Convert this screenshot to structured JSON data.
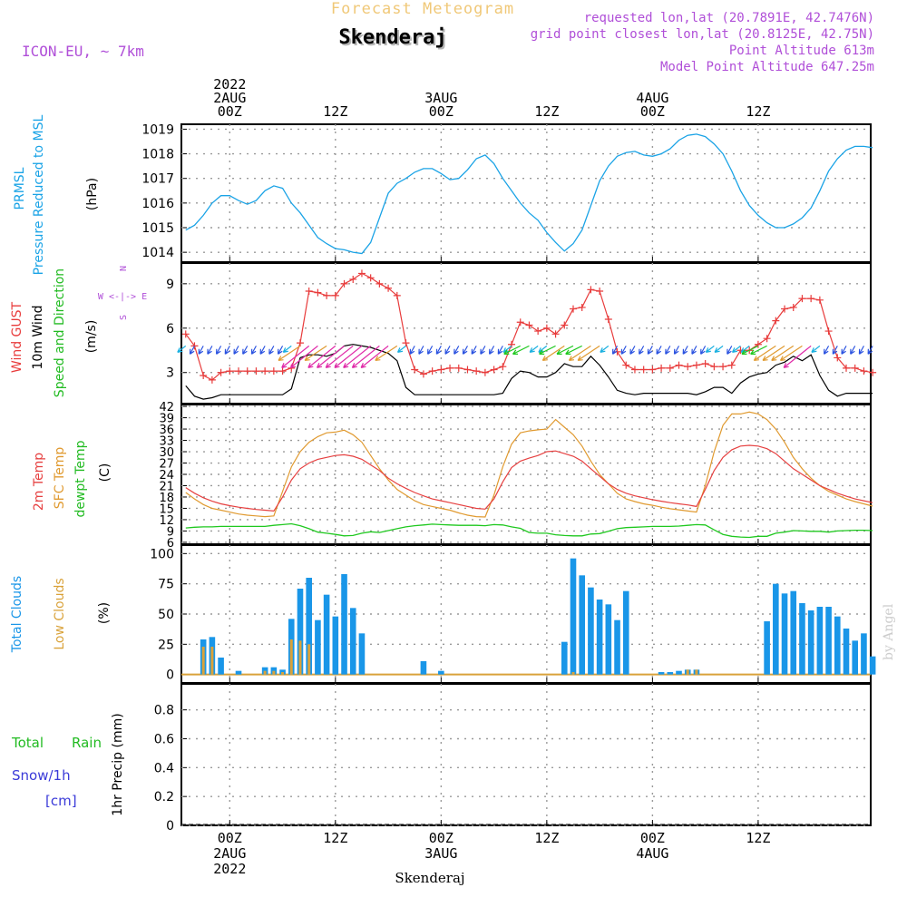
{
  "header": {
    "product": "Forecast Meteogram",
    "station": "Skenderaj",
    "model": "ICON-EU, ~ 7km",
    "requested": "requested lon,lat (20.7891E, 42.7476N)",
    "gridpoint": "grid point closest lon,lat (20.8125E, 42.75N)",
    "point_alt": "Point Altitude 613m",
    "model_alt": "Model Point Altitude 647.25m",
    "footer": "Skenderaj",
    "credit": "by Angel"
  },
  "time_axis": {
    "top_labels": [
      {
        "lines": [
          "2022",
          "2AUG",
          "00Z"
        ],
        "hour": 0
      },
      {
        "lines": [
          "12Z"
        ],
        "hour": 12
      },
      {
        "lines": [
          "3AUG",
          "00Z"
        ],
        "hour": 24
      },
      {
        "lines": [
          "12Z"
        ],
        "hour": 36
      },
      {
        "lines": [
          "4AUG",
          "00Z"
        ],
        "hour": 48
      },
      {
        "lines": [
          "12Z"
        ],
        "hour": 60
      }
    ],
    "bottom_labels": [
      {
        "lines": [
          "00Z",
          "2AUG",
          "2022"
        ],
        "hour": 0
      },
      {
        "lines": [
          "12Z"
        ],
        "hour": 12
      },
      {
        "lines": [
          "00Z",
          "3AUG"
        ],
        "hour": 24
      },
      {
        "lines": [
          "12Z"
        ],
        "hour": 36
      },
      {
        "lines": [
          "00Z",
          "4AUG"
        ],
        "hour": 48
      },
      {
        "lines": [
          "12Z"
        ],
        "hour": 60
      }
    ]
  },
  "panel_labels": {
    "pressure": {
      "name": "PRMSL",
      "desc": "Pressure Reduced to MSL",
      "unit": "(hPa)"
    },
    "wind": {
      "gust": "Wind GUST",
      "wind10": "10m Wind",
      "dir": "Speed and Direction",
      "unit": "(m/s)",
      "compass": [
        "N",
        "W <-|-> E",
        "S"
      ]
    },
    "temp": {
      "t2m": "2m Temp",
      "sfc": "SFC Temp",
      "dew": "dewpt Temp",
      "unit": "(C)"
    },
    "clouds": {
      "total": "Total Clouds",
      "low": "Low Clouds",
      "unit": "(%)"
    },
    "precip": {
      "total": "Total",
      "rain": "Rain",
      "snow": "Snow/1h",
      "cm": "[cm]",
      "ylabel": "1hr Precip (mm)"
    }
  },
  "colors": {
    "pressure": "#1aa3e6",
    "gust": "#e83b3b",
    "wind": "#000000",
    "t2m": "#e64040",
    "sfc": "#e09a30",
    "dew": "#1fc81f",
    "total_clouds": "#1996e8",
    "low_clouds": "#d9a23a",
    "header_orange": "#f0c878",
    "header_purple": "#b04fd8",
    "total_rain": "#22bb22",
    "snow": "#3a3ad8",
    "pressure_label": "#1aa3e6"
  },
  "chart_data": [
    {
      "type": "line",
      "title": "PRMSL Pressure Reduced to MSL",
      "ylabel": "(hPa)",
      "ylim": [
        1013.6,
        1019.2
      ],
      "yticks": [
        1014,
        1015,
        1016,
        1017,
        1018,
        1019
      ],
      "x_hours": [
        -5,
        -4,
        -3,
        -2,
        -1,
        0,
        1,
        2,
        3,
        4,
        5,
        6,
        7,
        8,
        9,
        10,
        11,
        12,
        13,
        14,
        15,
        16,
        17,
        18,
        19,
        20,
        21,
        22,
        23,
        24,
        25,
        26,
        27,
        28,
        29,
        30,
        31,
        32,
        33,
        34,
        35,
        36,
        37,
        38,
        39,
        40,
        41,
        42,
        43,
        44,
        45,
        46,
        47,
        48,
        49,
        50,
        51,
        52,
        53,
        54,
        55,
        56,
        57,
        58,
        59,
        60,
        61,
        62,
        63,
        64,
        65,
        66,
        67,
        68,
        69,
        70,
        71,
        72,
        73
      ],
      "series": [
        {
          "name": "PRMSL",
          "values": [
            1014.9,
            1015.1,
            1015.5,
            1016.0,
            1016.3,
            1016.3,
            1016.1,
            1015.95,
            1016.1,
            1016.5,
            1016.7,
            1016.6,
            1016.0,
            1015.6,
            1015.1,
            1014.6,
            1014.35,
            1014.15,
            1014.1,
            1014.0,
            1013.95,
            1014.4,
            1015.4,
            1016.4,
            1016.8,
            1017.0,
            1017.25,
            1017.4,
            1017.4,
            1017.2,
            1016.95,
            1017.0,
            1017.35,
            1017.8,
            1017.95,
            1017.6,
            1017.0,
            1016.5,
            1016.0,
            1015.6,
            1015.3,
            1014.8,
            1014.4,
            1014.05,
            1014.35,
            1014.9,
            1015.9,
            1016.9,
            1017.5,
            1017.9,
            1018.05,
            1018.1,
            1017.95,
            1017.9,
            1018.0,
            1018.2,
            1018.55,
            1018.75,
            1018.8,
            1018.7,
            1018.4,
            1018.0,
            1017.3,
            1016.5,
            1015.9,
            1015.5,
            1015.2,
            1015.0,
            1015.0,
            1015.15,
            1015.4,
            1015.8,
            1016.5,
            1017.3,
            1017.8,
            1018.15,
            1018.3,
            1018.3,
            1018.25
          ]
        }
      ]
    },
    {
      "type": "line",
      "title": "Wind GUST / 10m Wind Speed and Direction",
      "ylabel": "(m/s)",
      "ylim": [
        0.9,
        10.4
      ],
      "yticks": [
        3,
        6,
        9
      ],
      "x_hours": [
        -5,
        -4,
        -3,
        -2,
        -1,
        0,
        1,
        2,
        3,
        4,
        5,
        6,
        7,
        8,
        9,
        10,
        11,
        12,
        13,
        14,
        15,
        16,
        17,
        18,
        19,
        20,
        21,
        22,
        23,
        24,
        25,
        26,
        27,
        28,
        29,
        30,
        31,
        32,
        33,
        34,
        35,
        36,
        37,
        38,
        39,
        40,
        41,
        42,
        43,
        44,
        45,
        46,
        47,
        48,
        49,
        50,
        51,
        52,
        53,
        54,
        55,
        56,
        57,
        58,
        59,
        60,
        61,
        62,
        63,
        64,
        65,
        66,
        67,
        68,
        69,
        70,
        71,
        72,
        73
      ],
      "series": [
        {
          "name": "Wind GUST",
          "values": [
            5.6,
            4.8,
            2.8,
            2.5,
            3.0,
            3.1,
            3.1,
            3.1,
            3.1,
            3.1,
            3.1,
            3.1,
            3.3,
            5.0,
            8.5,
            8.4,
            8.2,
            8.2,
            9.0,
            9.3,
            9.7,
            9.4,
            9.0,
            8.7,
            8.2,
            5.0,
            3.2,
            2.9,
            3.1,
            3.2,
            3.3,
            3.3,
            3.2,
            3.1,
            3.0,
            3.2,
            3.4,
            4.9,
            6.4,
            6.2,
            5.8,
            6.0,
            5.6,
            6.2,
            7.3,
            7.4,
            8.6,
            8.5,
            6.6,
            4.4,
            3.5,
            3.2,
            3.2,
            3.2,
            3.3,
            3.3,
            3.5,
            3.4,
            3.5,
            3.6,
            3.4,
            3.4,
            3.5,
            4.5,
            4.5,
            4.9,
            5.3,
            6.5,
            7.3,
            7.4,
            8.0,
            8.0,
            7.9,
            5.8,
            4.0,
            3.3,
            3.3,
            3.1,
            3.0
          ]
        },
        {
          "name": "10m Wind",
          "values": [
            2.1,
            1.4,
            1.2,
            1.3,
            1.5,
            1.5,
            1.5,
            1.5,
            1.5,
            1.5,
            1.5,
            1.5,
            1.9,
            4.0,
            4.2,
            4.2,
            4.1,
            4.3,
            4.8,
            4.9,
            4.8,
            4.7,
            4.5,
            4.3,
            3.8,
            2.0,
            1.5,
            1.5,
            1.5,
            1.5,
            1.5,
            1.5,
            1.5,
            1.5,
            1.5,
            1.5,
            1.6,
            2.6,
            3.1,
            3.0,
            2.7,
            2.7,
            3.0,
            3.6,
            3.4,
            3.4,
            4.1,
            3.5,
            2.7,
            1.8,
            1.6,
            1.5,
            1.6,
            1.6,
            1.6,
            1.6,
            1.6,
            1.6,
            1.5,
            1.7,
            2.0,
            2.0,
            1.6,
            2.3,
            2.7,
            2.9,
            3.0,
            3.5,
            3.7,
            4.1,
            3.8,
            4.2,
            2.8,
            1.8,
            1.4,
            1.6,
            1.6,
            1.6,
            1.6
          ]
        }
      ],
      "direction_barbs": "arrows along 4.8 m/s line; blue/cyan NNE arrows at night, green/orange/magenta SW-NE arrows during day"
    },
    {
      "type": "line",
      "title": "2m Temp / SFC Temp / dewpt Temp",
      "ylabel": "(C)",
      "ylim": [
        5.5,
        42.5
      ],
      "yticks": [
        6,
        9,
        12,
        15,
        18,
        21,
        24,
        27,
        30,
        33,
        36,
        39,
        42
      ],
      "x_hours": [
        -5,
        -4,
        -3,
        -2,
        -1,
        0,
        1,
        2,
        3,
        4,
        5,
        6,
        7,
        8,
        9,
        10,
        11,
        12,
        13,
        14,
        15,
        16,
        17,
        18,
        19,
        20,
        21,
        22,
        23,
        24,
        25,
        26,
        27,
        28,
        29,
        30,
        31,
        32,
        33,
        34,
        35,
        36,
        37,
        38,
        39,
        40,
        41,
        42,
        43,
        44,
        45,
        46,
        47,
        48,
        49,
        50,
        51,
        52,
        53,
        54,
        55,
        56,
        57,
        58,
        59,
        60,
        61,
        62,
        63,
        64,
        65,
        66,
        67,
        68,
        69,
        70,
        71,
        72,
        73
      ],
      "series": [
        {
          "name": "2m Temp",
          "values": [
            20.5,
            19.0,
            17.8,
            16.9,
            16.2,
            15.7,
            15.3,
            15.0,
            14.7,
            14.5,
            14.3,
            18.0,
            22.5,
            25.5,
            27.0,
            28.0,
            28.5,
            29.0,
            29.2,
            28.8,
            28.0,
            26.5,
            25.0,
            23.0,
            21.5,
            20.3,
            19.2,
            18.3,
            17.5,
            17.0,
            16.5,
            16.0,
            15.5,
            15.0,
            14.8,
            17.5,
            22.0,
            25.8,
            27.5,
            28.3,
            29.0,
            30.0,
            30.2,
            29.5,
            28.8,
            27.5,
            25.5,
            23.5,
            21.5,
            20.0,
            19.0,
            18.3,
            17.8,
            17.3,
            16.9,
            16.5,
            16.2,
            15.9,
            15.5,
            20.0,
            25.0,
            28.5,
            30.5,
            31.5,
            31.7,
            31.5,
            30.8,
            29.5,
            27.5,
            25.5,
            24.0,
            22.5,
            21.0,
            20.0,
            19.0,
            18.2,
            17.5,
            17.0,
            16.5
          ]
        },
        {
          "name": "SFC Temp",
          "values": [
            19.2,
            17.5,
            16.0,
            15.0,
            14.5,
            14.0,
            13.5,
            13.2,
            13.0,
            12.8,
            13.0,
            19.5,
            26.0,
            30.0,
            32.5,
            34.0,
            35.0,
            35.2,
            35.7,
            34.5,
            32.5,
            29.0,
            25.5,
            22.5,
            20.0,
            18.5,
            17.0,
            16.0,
            15.5,
            15.0,
            14.5,
            13.8,
            13.2,
            12.8,
            12.7,
            18.5,
            26.0,
            32.0,
            35.0,
            35.5,
            35.8,
            36.0,
            38.5,
            36.5,
            34.5,
            31.5,
            27.5,
            24.0,
            21.5,
            19.0,
            17.5,
            16.8,
            16.2,
            15.8,
            15.3,
            14.9,
            14.6,
            14.3,
            14.0,
            21.0,
            30.0,
            37.0,
            40.0,
            40.0,
            40.5,
            40.0,
            38.5,
            36.0,
            32.5,
            28.5,
            25.5,
            23.0,
            21.0,
            19.5,
            18.5,
            17.5,
            16.8,
            16.2,
            15.6
          ]
        },
        {
          "name": "dewpt Temp",
          "values": [
            9.8,
            10.0,
            10.1,
            10.1,
            10.2,
            10.2,
            10.2,
            10.2,
            10.2,
            10.2,
            10.5,
            10.7,
            10.9,
            10.4,
            9.6,
            8.7,
            8.4,
            8.1,
            7.7,
            7.8,
            8.4,
            8.8,
            8.6,
            9.1,
            9.6,
            10.1,
            10.4,
            10.6,
            10.8,
            10.7,
            10.6,
            10.5,
            10.5,
            10.5,
            10.4,
            10.7,
            10.6,
            10.1,
            9.7,
            8.6,
            8.4,
            8.4,
            8.0,
            7.8,
            7.7,
            7.7,
            8.2,
            8.3,
            8.9,
            9.6,
            9.9,
            10.0,
            10.1,
            10.2,
            10.2,
            10.2,
            10.3,
            10.5,
            10.7,
            10.6,
            9.3,
            8.1,
            7.6,
            7.4,
            7.3,
            7.6,
            7.6,
            8.4,
            8.7,
            9.1,
            9.0,
            8.9,
            8.9,
            8.7,
            9.0,
            9.1,
            9.2,
            9.2,
            9.1
          ]
        }
      ]
    },
    {
      "type": "bar",
      "title": "Total Clouds / Low Clouds",
      "ylabel": "(%)",
      "ylim": [
        -7,
        107
      ],
      "yticks": [
        0,
        25,
        50,
        75,
        100
      ],
      "x_hours": [
        -3,
        -2,
        -1,
        1,
        4,
        5,
        6,
        7,
        8,
        9,
        10,
        11,
        12,
        13,
        14,
        15,
        22,
        24,
        38,
        39,
        40,
        41,
        42,
        43,
        44,
        45,
        46,
        49,
        50,
        51,
        52,
        53,
        61,
        62,
        63,
        64,
        65,
        66,
        67,
        68,
        69,
        70,
        71,
        72,
        73
      ],
      "series": [
        {
          "name": "Total Clouds",
          "values": [
            29,
            31,
            14,
            3,
            6,
            6,
            4,
            46,
            71,
            80,
            45,
            66,
            48,
            83,
            55,
            34,
            11,
            3,
            27,
            96,
            82,
            72,
            62,
            58,
            45,
            69,
            0,
            2,
            2,
            3,
            4,
            4,
            44,
            75,
            67,
            69,
            59,
            53,
            56,
            56,
            48,
            38,
            28,
            34,
            15
          ]
        },
        {
          "name": "Low Clouds",
          "values": [
            23,
            23,
            0,
            0,
            3,
            3,
            2,
            29,
            28,
            25,
            0,
            0,
            0,
            0,
            0,
            0,
            0,
            0,
            0,
            2,
            0,
            0,
            0,
            0,
            0,
            0,
            0,
            0,
            0,
            0,
            4,
            4,
            0,
            0,
            0,
            0,
            0,
            0,
            0,
            0,
            0,
            0,
            0,
            0,
            0
          ]
        }
      ]
    },
    {
      "type": "bar",
      "title": "1hr Precip (mm)",
      "ylabel": "1hr Precip (mm)",
      "ylim": [
        0,
        0.98
      ],
      "yticks": [
        "0",
        "0.2",
        "0.4",
        "0.6",
        "0.8"
      ],
      "series": [
        {
          "name": "Total Rain",
          "values": []
        },
        {
          "name": "Snow/1h",
          "values": []
        }
      ]
    }
  ]
}
